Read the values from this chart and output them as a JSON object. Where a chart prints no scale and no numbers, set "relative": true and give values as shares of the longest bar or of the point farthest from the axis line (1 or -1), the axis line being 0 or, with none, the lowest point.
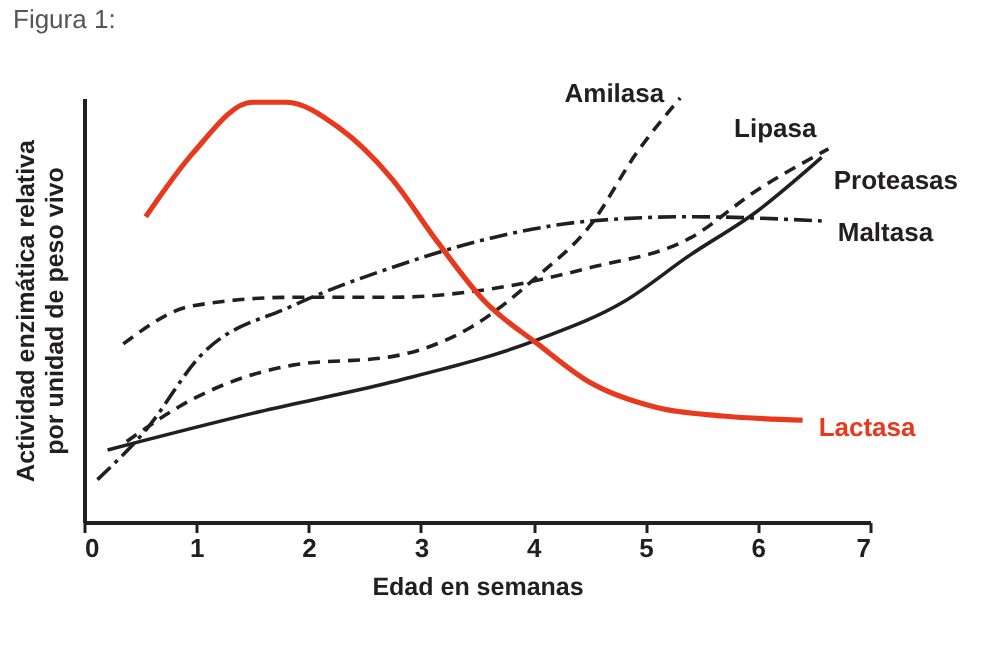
{
  "chart_data": {
    "type": "line",
    "title": "Figura 1:",
    "xlabel": "Edad en semanas",
    "ylabel": "Actividad enzimática relativa\npor unidad de peso vivo",
    "relative": true,
    "xlim": [
      0,
      7
    ],
    "xticks": [
      0,
      1,
      2,
      3,
      4,
      5,
      6,
      7
    ],
    "marker": "none",
    "series": [
      {
        "name": "Amilasa",
        "color": "#231f20",
        "line_style": "dashed",
        "x": [
          0.38,
          0.97,
          1.86,
          2.74,
          3.45,
          4.04,
          4.51,
          4.92,
          5.31
        ],
        "values": [
          0.19,
          0.29,
          0.37,
          0.39,
          0.46,
          0.58,
          0.7,
          0.87,
          1.0
        ]
      },
      {
        "name": "Lipasa",
        "color": "#231f20",
        "line_style": "dashed",
        "x": [
          0.35,
          0.97,
          1.86,
          2.74,
          3.63,
          4.51,
          5.4,
          5.98,
          6.63
        ],
        "values": [
          0.42,
          0.51,
          0.53,
          0.53,
          0.55,
          0.6,
          0.67,
          0.78,
          0.88
        ]
      },
      {
        "name": "Proteasas",
        "color": "#231f20",
        "line_style": "solid",
        "x": [
          0.21,
          1.56,
          2.74,
          4.04,
          4.81,
          5.4,
          5.98,
          6.57
        ],
        "values": [
          0.17,
          0.26,
          0.33,
          0.43,
          0.52,
          0.63,
          0.73,
          0.86
        ]
      },
      {
        "name": "Maltasa",
        "color": "#231f20",
        "line_style": "dashdot",
        "x": [
          0.12,
          0.56,
          1.03,
          1.86,
          2.74,
          3.63,
          4.51,
          5.4,
          6.57
        ],
        "values": [
          0.1,
          0.22,
          0.39,
          0.51,
          0.6,
          0.67,
          0.71,
          0.72,
          0.71
        ]
      },
      {
        "name": "Lactasa",
        "color": "#e8381e",
        "line_style": "solid",
        "x": [
          0.55,
          0.97,
          1.5,
          1.8,
          2.27,
          2.74,
          3.15,
          3.57,
          4.04,
          4.5,
          5.1,
          5.69,
          6.4
        ],
        "values": [
          0.72,
          0.87,
          0.99,
          0.99,
          0.93,
          0.81,
          0.66,
          0.52,
          0.42,
          0.33,
          0.27,
          0.25,
          0.24
        ]
      }
    ]
  }
}
